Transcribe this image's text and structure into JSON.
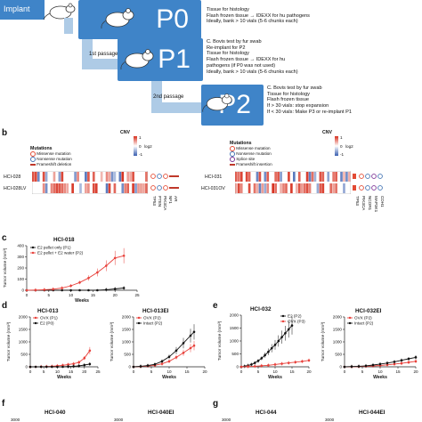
{
  "panel_a": {
    "implant_label": "Implant",
    "p0_label": "P0",
    "p0_bullets": [
      "Tissue for histology",
      "Flash frozen tissue → IDEXX for hu pathogens",
      "Ideally, bank > 10 vials (5-6 chunks each)"
    ],
    "first_passage_label": "1st passage",
    "p1_label": "P1",
    "p1_bullets": [
      "C. Bovis test by fur swab",
      "Re-implant for P2",
      "Tissue for histology",
      "Flash frozen tissue → IDEXX for hu",
      "pathogens (if P0 was not used)",
      "Ideally, bank > 10 vials (5-6 chunks each)"
    ],
    "second_passage_label": "2nd passage",
    "p2_label": "P2",
    "p2_bullets": [
      "C. Bovis test by fur swab",
      "Tissue for histology",
      "Flash frozen tissue",
      "If > 30 vials: stop expansion",
      "If < 30 vials: Make P3 or re-implant P1"
    ]
  },
  "panel_b": {
    "letter": "b",
    "cnv_label": "CNV",
    "log2_label": "log2",
    "scale_top": "1",
    "scale_mid": "0",
    "scale_bottom": "-1",
    "left": {
      "mutations_title": "Mutations",
      "legend": [
        "Missense mutation",
        "Nonsense mutation",
        "Frameshift deletion"
      ],
      "rows": [
        "HCI-028",
        "HCI-028LV"
      ],
      "genes": [
        "TP53",
        "PTEN",
        "PIK3CA",
        "NF1",
        "AR"
      ]
    },
    "right": {
      "mutations_title": "Mutations",
      "legend": [
        "Missense mutation",
        "Nonsense mutation",
        "Splice site",
        "Frameshift insertion"
      ],
      "rows": [
        "HCI-031",
        "HCI-031OV"
      ],
      "genes": [
        "TP53",
        "PIK3CA",
        "NCOR1",
        "MAP3K1",
        "CDH1"
      ]
    },
    "colors": {
      "red": "#d7301f",
      "blue": "#3a5fb0",
      "missense": "#e34a33",
      "nonsense": "#4575b4",
      "frameshift": "#c0392b",
      "splice": "#7b3294"
    }
  },
  "panel_c": {
    "letter": "c",
    "title": "HCI-018",
    "ylabel": "Tumor volume (mm³)",
    "xlabel": "Weeks",
    "yticks": [
      "0",
      "100",
      "200",
      "300",
      "400"
    ],
    "xticks": [
      "0",
      "5",
      "10",
      "15",
      "20",
      "25"
    ],
    "legend": [
      "E2 pellet only (P1)",
      "E2 pellet + E2 water (P2)"
    ]
  },
  "panel_d": {
    "letter": "d",
    "left": {
      "title": "HCI-013",
      "ylabel": "Tumor volume (mm³)",
      "xlabel": "Weeks",
      "yticks": [
        "0",
        "500",
        "1000",
        "1500",
        "2000"
      ],
      "xticks": [
        "0",
        "5",
        "10",
        "15",
        "20",
        "25"
      ],
      "legend": [
        "OVX (P1)",
        "E2 (P0)"
      ]
    },
    "right": {
      "title": "HCI-013EI",
      "ylabel": "Tumor volume (mm³)",
      "xlabel": "Weeks",
      "yticks": [
        "0",
        "500",
        "1000",
        "1500",
        "2000"
      ],
      "xticks": [
        "0",
        "5",
        "10",
        "15",
        "20"
      ],
      "legend": [
        "OVX (P2)",
        "Intact (P2)"
      ]
    }
  },
  "panel_e": {
    "letter": "e",
    "left": {
      "title": "HCI-032",
      "ylabel": "Tumor volume (mm³)",
      "xlabel": "Weeks",
      "yticks": [
        "0",
        "500",
        "1000",
        "1500",
        "2000"
      ],
      "xticks": [
        "0",
        "5",
        "10",
        "15",
        "20"
      ],
      "legend": [
        "E2 (P2)",
        "OVX (P3)"
      ]
    },
    "right": {
      "title": "HCI-032EI",
      "ylabel": "Tumor volume (mm³)",
      "xlabel": "Weeks",
      "yticks": [
        "0",
        "500",
        "1000",
        "1500",
        "2000"
      ],
      "xticks": [
        "0",
        "5",
        "10",
        "15",
        "20"
      ],
      "legend": [
        "OVX (P2)",
        "Intact (P2)"
      ]
    }
  },
  "panel_f": {
    "letter": "f",
    "left_title": "HCI-040",
    "right_title": "HCI-040EI",
    "ytick_top": "3000"
  },
  "panel_g": {
    "letter": "g",
    "left_title": "HCI-044",
    "right_title": "HCI-044EI",
    "ytick_top": "3000"
  },
  "chart_data": [
    {
      "type": "line",
      "title": "HCI-018",
      "xlabel": "Weeks",
      "ylabel": "Tumor volume (mm³)",
      "xlim": [
        0,
        25
      ],
      "ylim": [
        0,
        400
      ],
      "series": [
        {
          "name": "E2 pellet only (P1)",
          "color": "#111111",
          "x": [
            0,
            2,
            4,
            6,
            8,
            10,
            12,
            14,
            16,
            18,
            20,
            22
          ],
          "y": [
            0,
            0,
            0,
            0,
            0,
            0,
            0,
            0,
            0,
            5,
            12,
            20
          ]
        },
        {
          "name": "E2 pellet + E2 water (P2)",
          "color": "#e8413b",
          "x": [
            0,
            2,
            4,
            6,
            8,
            10,
            12,
            14,
            16,
            18,
            20,
            22
          ],
          "y": [
            0,
            2,
            5,
            10,
            20,
            40,
            70,
            110,
            160,
            220,
            290,
            310
          ]
        }
      ]
    },
    {
      "type": "line",
      "title": "HCI-013",
      "xlabel": "Weeks",
      "ylabel": "Tumor volume (mm³)",
      "xlim": [
        0,
        25
      ],
      "ylim": [
        0,
        2000
      ],
      "series": [
        {
          "name": "OVX (P1)",
          "color": "#e8413b",
          "x": [
            0,
            2,
            4,
            6,
            8,
            10,
            12,
            14,
            16,
            18,
            20,
            22
          ],
          "y": [
            0,
            0,
            5,
            10,
            20,
            40,
            60,
            90,
            120,
            180,
            350,
            650
          ]
        },
        {
          "name": "E2 (P0)",
          "color": "#111111",
          "x": [
            0,
            2,
            4,
            6,
            8,
            10,
            12,
            14,
            16,
            18,
            20,
            22
          ],
          "y": [
            0,
            0,
            0,
            0,
            0,
            0,
            0,
            10,
            20,
            40,
            70,
            110
          ]
        }
      ]
    },
    {
      "type": "line",
      "title": "HCI-013EI",
      "xlabel": "Weeks",
      "ylabel": "Tumor volume (mm³)",
      "xlim": [
        0,
        20
      ],
      "ylim": [
        0,
        2000
      ],
      "series": [
        {
          "name": "OVX (P2)",
          "color": "#e8413b",
          "x": [
            0,
            2,
            4,
            6,
            8,
            10,
            12,
            14,
            16,
            17
          ],
          "y": [
            0,
            10,
            30,
            60,
            120,
            220,
            380,
            560,
            750,
            850
          ]
        },
        {
          "name": "Intact (P2)",
          "color": "#111111",
          "x": [
            0,
            2,
            4,
            6,
            8,
            10,
            12,
            14,
            16,
            17
          ],
          "y": [
            0,
            20,
            50,
            100,
            220,
            400,
            650,
            950,
            1250,
            1400
          ]
        }
      ]
    },
    {
      "type": "line",
      "title": "HCI-032",
      "xlabel": "Weeks",
      "ylabel": "Tumor volume (mm³)",
      "xlim": [
        0,
        20
      ],
      "ylim": [
        0,
        2000
      ],
      "series": [
        {
          "name": "E2 (P2)",
          "color": "#111111",
          "x": [
            0,
            1,
            2,
            3,
            4,
            5,
            6,
            7,
            8,
            9,
            10,
            11,
            12,
            13,
            14,
            15
          ],
          "y": [
            0,
            20,
            50,
            90,
            150,
            230,
            330,
            450,
            580,
            720,
            850,
            1000,
            1150,
            1300,
            1450,
            1600
          ]
        },
        {
          "name": "OVX (P3)",
          "color": "#e8413b",
          "x": [
            0,
            2,
            4,
            6,
            8,
            10,
            12,
            14,
            16,
            18,
            20
          ],
          "y": [
            0,
            10,
            20,
            40,
            60,
            90,
            120,
            150,
            180,
            210,
            250
          ]
        }
      ]
    },
    {
      "type": "line",
      "title": "HCI-032EI",
      "xlabel": "Weeks",
      "ylabel": "Tumor volume (mm³)",
      "xlim": [
        0,
        20
      ],
      "ylim": [
        0,
        2000
      ],
      "series": [
        {
          "name": "OVX (P2)",
          "color": "#e8413b",
          "x": [
            0,
            2,
            4,
            6,
            8,
            10,
            12,
            14,
            16,
            18,
            20
          ],
          "y": [
            0,
            5,
            10,
            20,
            35,
            55,
            80,
            110,
            140,
            180,
            220
          ]
        },
        {
          "name": "Intact (P2)",
          "color": "#111111",
          "x": [
            0,
            2,
            4,
            6,
            8,
            10,
            12,
            14,
            16,
            18,
            20
          ],
          "y": [
            0,
            10,
            20,
            40,
            70,
            110,
            150,
            200,
            260,
            320,
            380
          ]
        }
      ]
    }
  ]
}
